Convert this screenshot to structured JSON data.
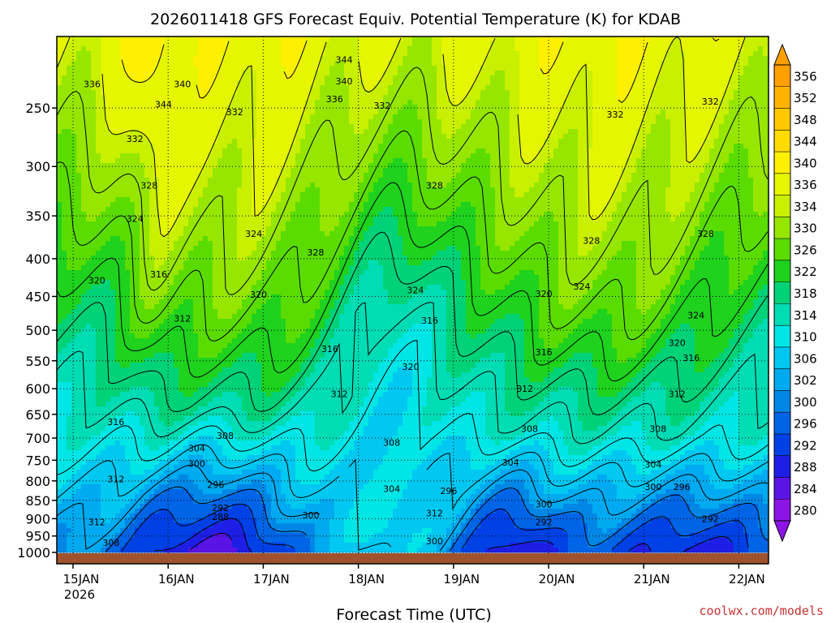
{
  "chart_data": {
    "type": "heatmap",
    "title": "2026011418 GFS Forecast Equiv. Potential Temperature (K) for KDAB",
    "xlabel": "Forecast Time (UTC)",
    "ylabel": "",
    "credit": "coolwx.com/models",
    "x_ticks": [
      "15JAN",
      "16JAN",
      "17JAN",
      "18JAN",
      "19JAN",
      "20JAN",
      "21JAN",
      "22JAN"
    ],
    "x_year": "2026",
    "y_ticks": [
      "250",
      "300",
      "350",
      "400",
      "450",
      "500",
      "550",
      "600",
      "650",
      "700",
      "750",
      "800",
      "850",
      "900",
      "950",
      "1000"
    ],
    "ylim": [
      1000,
      200
    ],
    "y_scale": "log",
    "grid": true,
    "colorbar": {
      "levels": [
        "356",
        "352",
        "348",
        "344",
        "340",
        "336",
        "334",
        "330",
        "326",
        "322",
        "318",
        "314",
        "310",
        "306",
        "302",
        "300",
        "296",
        "292",
        "288",
        "284",
        "280"
      ],
      "colors": [
        "#ff9f00",
        "#ffb300",
        "#ffc800",
        "#ffdc00",
        "#fff000",
        "#e6f500",
        "#c8f000",
        "#96e600",
        "#5adc00",
        "#1ed21e",
        "#00d278",
        "#00dcb4",
        "#00e6e6",
        "#00c8f0",
        "#00aaf0",
        "#0087e6",
        "#0064e6",
        "#0041e6",
        "#1e1ee6",
        "#5a14e6",
        "#8c14e6"
      ]
    },
    "contour_labels": [
      {
        "value": "344",
        "time": "Jan 17.85",
        "p": 215
      },
      {
        "value": "340",
        "time": "Jan 17.85",
        "p": 230
      },
      {
        "value": "336",
        "time": "Jan 17.75",
        "p": 243
      },
      {
        "value": "332",
        "time": "Jan 18.25",
        "p": 248
      },
      {
        "value": "332",
        "time": "Jan 16.7",
        "p": 253
      },
      {
        "value": "332",
        "time": "Jan 20.7",
        "p": 255
      },
      {
        "value": "332",
        "time": "Jan 21.7",
        "p": 245
      },
      {
        "value": "336",
        "time": "Jan 15.2",
        "p": 232
      },
      {
        "value": "340",
        "time": "Jan 16.15",
        "p": 232
      },
      {
        "value": "344",
        "time": "Jan 15.95",
        "p": 247
      },
      {
        "value": "332",
        "time": "Jan 15.65",
        "p": 275
      },
      {
        "value": "328",
        "time": "Jan 15.8",
        "p": 318
      },
      {
        "value": "324",
        "time": "Jan 15.65",
        "p": 353
      },
      {
        "value": "328",
        "time": "Jan 18.8",
        "p": 318
      },
      {
        "value": "324",
        "time": "Jan 16.9",
        "p": 370
      },
      {
        "value": "328",
        "time": "Jan 17.55",
        "p": 392
      },
      {
        "value": "328",
        "time": "Jan 20.45",
        "p": 378
      },
      {
        "value": "328",
        "time": "Jan 21.65",
        "p": 370
      },
      {
        "value": "320",
        "time": "Jan 15.25",
        "p": 428
      },
      {
        "value": "316",
        "time": "Jan 15.9",
        "p": 420
      },
      {
        "value": "320",
        "time": "Jan 16.95",
        "p": 447
      },
      {
        "value": "324",
        "time": "Jan 18.6",
        "p": 441
      },
      {
        "value": "320",
        "time": "Jan 19.95",
        "p": 446
      },
      {
        "value": "324",
        "time": "Jan 20.35",
        "p": 436
      },
      {
        "value": "324",
        "time": "Jan 21.55",
        "p": 477
      },
      {
        "value": "312",
        "time": "Jan 16.15",
        "p": 482
      },
      {
        "value": "316",
        "time": "Jan 18.75",
        "p": 485
      },
      {
        "value": "320",
        "time": "Jan 21.35",
        "p": 520
      },
      {
        "value": "316",
        "time": "Jan 17.7",
        "p": 530
      },
      {
        "value": "316",
        "time": "Jan 19.95",
        "p": 535
      },
      {
        "value": "316",
        "time": "Jan 21.5",
        "p": 545
      },
      {
        "value": "320",
        "time": "Jan 18.55",
        "p": 560
      },
      {
        "value": "312",
        "time": "Jan 17.8",
        "p": 610
      },
      {
        "value": "312",
        "time": "Jan 19.75",
        "p": 600
      },
      {
        "value": "312",
        "time": "Jan 21.35",
        "p": 610
      },
      {
        "value": "316",
        "time": "Jan 15.45",
        "p": 665
      },
      {
        "value": "308",
        "time": "Jan 16.6",
        "p": 695
      },
      {
        "value": "308",
        "time": "Jan 19.8",
        "p": 680
      },
      {
        "value": "308",
        "time": "Jan 18.35",
        "p": 710
      },
      {
        "value": "308",
        "time": "Jan 21.15",
        "p": 680
      },
      {
        "value": "304",
        "time": "Jan 16.3",
        "p": 722
      },
      {
        "value": "304",
        "time": "Jan 19.6",
        "p": 755
      },
      {
        "value": "304",
        "time": "Jan 21.1",
        "p": 760
      },
      {
        "value": "300",
        "time": "Jan 16.3",
        "p": 758
      },
      {
        "value": "312",
        "time": "Jan 15.45",
        "p": 795
      },
      {
        "value": "296",
        "time": "Jan 16.5",
        "p": 810
      },
      {
        "value": "304",
        "time": "Jan 18.35",
        "p": 820
      },
      {
        "value": "296",
        "time": "Jan 18.95",
        "p": 825
      },
      {
        "value": "300",
        "time": "Jan 21.1",
        "p": 815
      },
      {
        "value": "296",
        "time": "Jan 21.4",
        "p": 815
      },
      {
        "value": "292",
        "time": "Jan 16.55",
        "p": 870
      },
      {
        "value": "288",
        "time": "Jan 16.55",
        "p": 895
      },
      {
        "value": "300",
        "time": "Jan 19.95",
        "p": 860
      },
      {
        "value": "300",
        "time": "Jan 17.5",
        "p": 890
      },
      {
        "value": "312",
        "time": "Jan 18.8",
        "p": 885
      },
      {
        "value": "312",
        "time": "Jan 15.25",
        "p": 910
      },
      {
        "value": "292",
        "time": "Jan 19.95",
        "p": 910
      },
      {
        "value": "292",
        "time": "Jan 21.7",
        "p": 900
      },
      {
        "value": "300",
        "time": "Jan 18.8",
        "p": 965
      },
      {
        "value": "308",
        "time": "Jan 15.4",
        "p": 970
      }
    ]
  }
}
